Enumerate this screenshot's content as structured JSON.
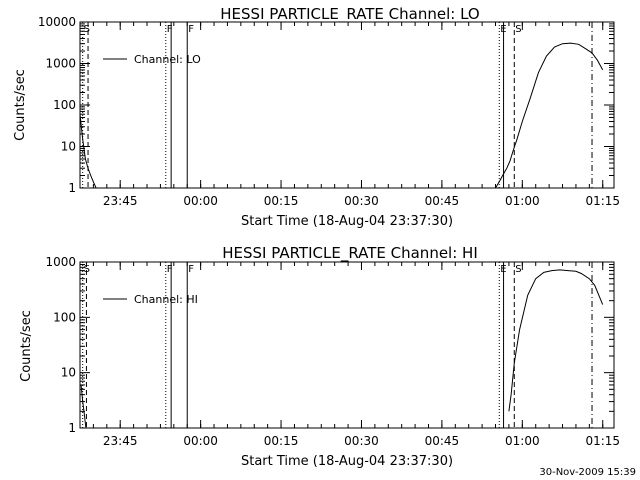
{
  "timestamp": "30-Nov-2009 15:39",
  "chart_data": [
    {
      "type": "line",
      "title": "HESSI PARTICLE_RATE Channel: LO",
      "xlabel": "Start Time (18-Aug-04 23:37:30)",
      "ylabel": "Counts/sec",
      "yscale": "log",
      "ylim": [
        1,
        10000
      ],
      "xlim_minutes": [
        0,
        99.6
      ],
      "x_tick_labels": [
        "23:45",
        "00:00",
        "00:15",
        "00:30",
        "00:45",
        "01:00",
        "01:15"
      ],
      "y_tick_labels": [
        "1",
        "10",
        "100",
        "1000",
        "10000"
      ],
      "legend": {
        "position": "upper-left",
        "entries": [
          "Channel: LO"
        ]
      },
      "series": [
        {
          "name": "Channel: LO",
          "segments": [
            {
              "x": [
                0,
                0.5,
                1.0,
                1.5,
                2.0,
                2.5,
                3.0
              ],
              "y": [
                60,
                15,
                5,
                3,
                2,
                1.4,
                1
              ]
            },
            {
              "x": [
                77.5,
                78.3,
                79.0,
                79.6,
                80.2,
                80.8,
                81.5,
                82.5,
                84.0,
                85.5,
                87.0,
                88.5,
                90.0,
                91.5,
                93.0,
                94.0,
                95.5,
                96.5,
                97.5
              ],
              "y": [
                1,
                1.5,
                2.2,
                3.0,
                4.5,
                8,
                15,
                40,
                150,
                600,
                1500,
                2500,
                3000,
                3100,
                2900,
                2400,
                1800,
                1200,
                700
              ]
            }
          ]
        }
      ],
      "markers": [
        {
          "x": 0.5,
          "label": "S",
          "style": "dotted"
        },
        {
          "x": 1.5,
          "label": "",
          "style": "dashed"
        },
        {
          "x": 16.0,
          "label": "F",
          "style": "dotted"
        },
        {
          "x": 17.0,
          "label": "",
          "style": "solid"
        },
        {
          "x": 20.0,
          "label": "F",
          "style": "solid"
        },
        {
          "x": 78.2,
          "label": "E",
          "style": "dotted"
        },
        {
          "x": 79.0,
          "label": "",
          "style": "solid"
        },
        {
          "x": 81.0,
          "label": "S",
          "style": "dashed"
        },
        {
          "x": 95.5,
          "label": "",
          "style": "dashdot"
        }
      ]
    },
    {
      "type": "line",
      "title": "HESSI PARTICLE_RATE Channel: HI",
      "xlabel": "Start Time (18-Aug-04 23:37:30)",
      "ylabel": "Counts/sec",
      "yscale": "log",
      "ylim": [
        1,
        1000
      ],
      "xlim_minutes": [
        0,
        99.6
      ],
      "x_tick_labels": [
        "23:45",
        "00:00",
        "00:15",
        "00:30",
        "00:45",
        "01:00",
        "01:15"
      ],
      "y_tick_labels": [
        "1",
        "10",
        "100",
        "1000"
      ],
      "legend": {
        "position": "upper-left",
        "entries": [
          "Channel: HI"
        ]
      },
      "series": [
        {
          "name": "Channel: HI",
          "segments": [
            {
              "x": [
                0.2,
                0.5,
                0.8,
                1.1
              ],
              "y": [
                6,
                3,
                1.8,
                1
              ]
            },
            {
              "x": [
                80.0,
                80.4,
                81.0,
                82.0,
                83.5,
                85.0,
                86.5,
                88.0,
                89.5,
                91.0,
                92.5,
                93.5,
                95.0,
                96.0,
                97.5
              ],
              "y": [
                2.0,
                4,
                15,
                60,
                250,
                500,
                650,
                700,
                720,
                700,
                680,
                620,
                500,
                380,
                170
              ]
            }
          ]
        }
      ],
      "markers": [
        {
          "x": 0.5,
          "label": "S",
          "style": "dotted"
        },
        {
          "x": 1.2,
          "label": "",
          "style": "dashed"
        },
        {
          "x": 16.0,
          "label": "F",
          "style": "dotted"
        },
        {
          "x": 17.0,
          "label": "",
          "style": "solid"
        },
        {
          "x": 20.0,
          "label": "F",
          "style": "solid"
        },
        {
          "x": 78.2,
          "label": "E",
          "style": "dotted"
        },
        {
          "x": 79.0,
          "label": "",
          "style": "solid"
        },
        {
          "x": 81.0,
          "label": "S",
          "style": "dashed"
        },
        {
          "x": 95.5,
          "label": "",
          "style": "dashdot"
        }
      ]
    }
  ]
}
